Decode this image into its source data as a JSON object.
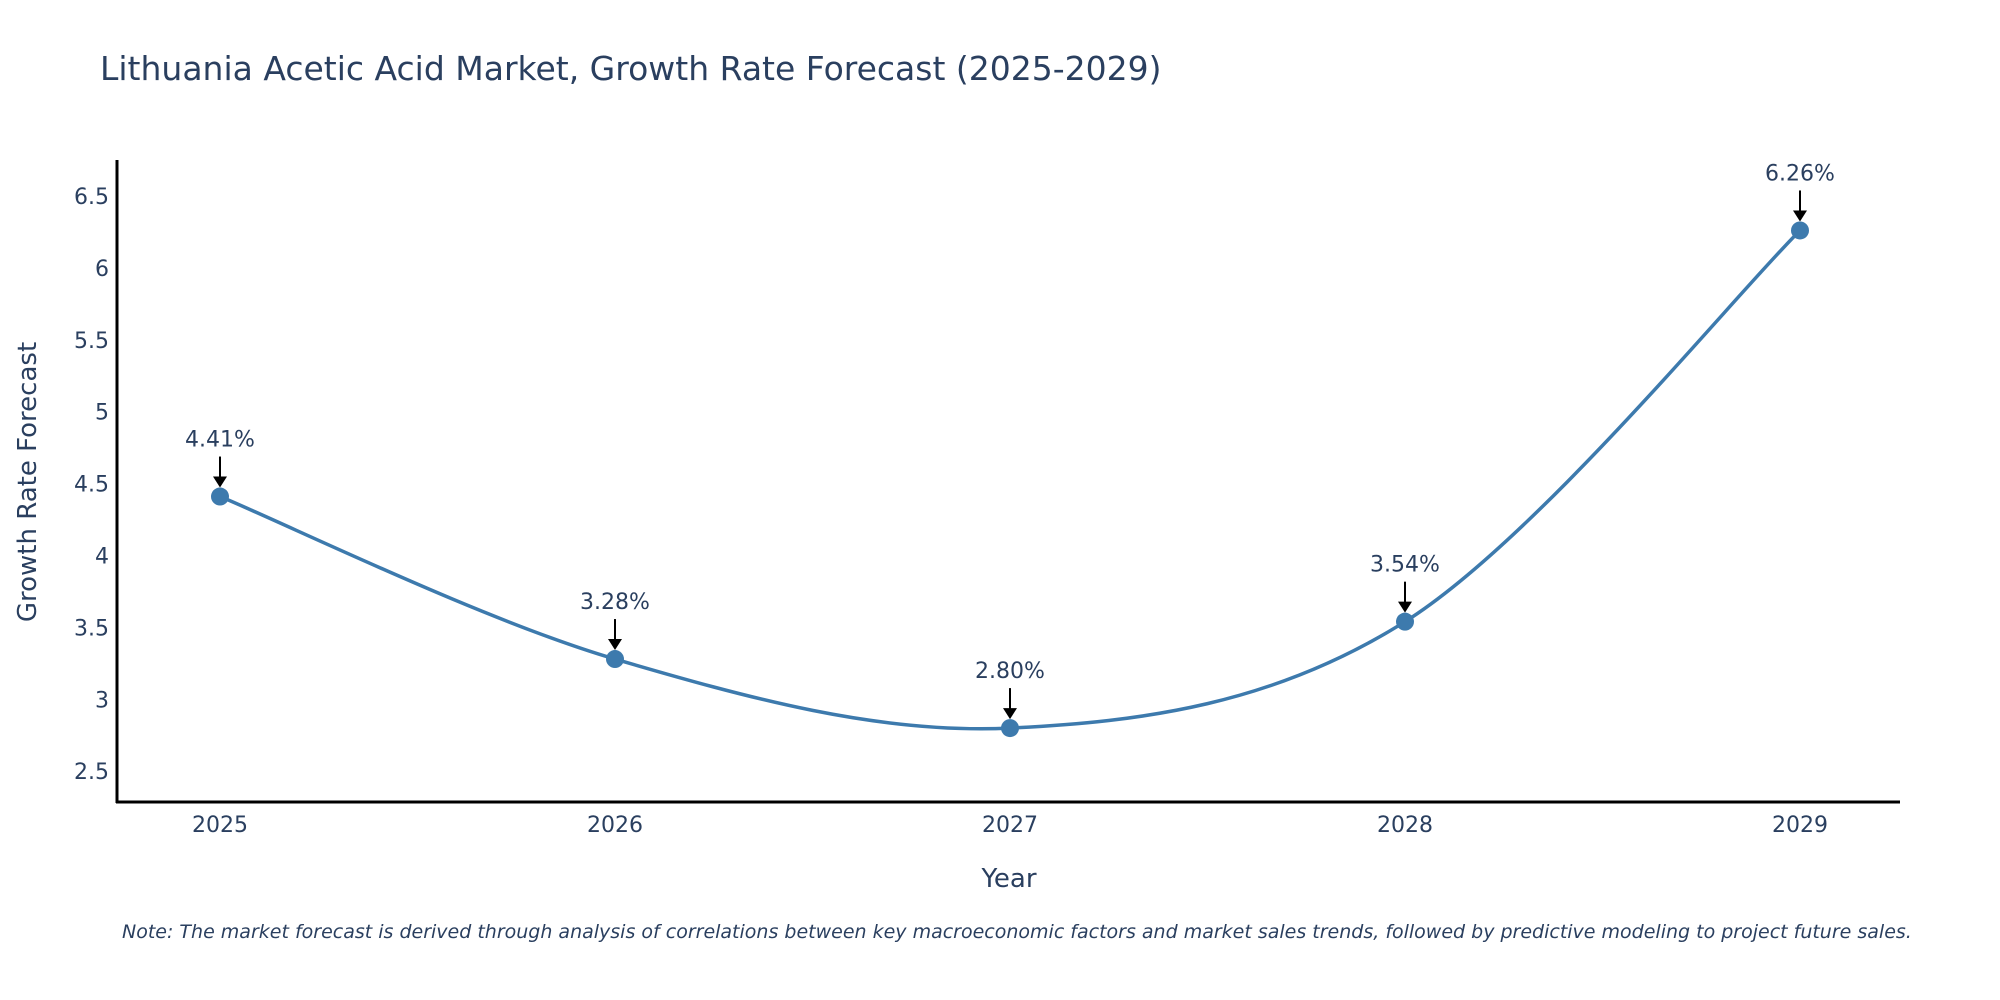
{
  "chart_data": {
    "type": "line",
    "title": "Lithuania Acetic Acid Market, Growth Rate Forecast (2025-2029)",
    "xlabel": "Year",
    "ylabel": "Growth Rate Forecast",
    "categories": [
      "2025",
      "2026",
      "2027",
      "2028",
      "2029"
    ],
    "series": [
      {
        "name": "Growth Rate Forecast",
        "values": [
          4.41,
          3.28,
          2.8,
          3.54,
          6.26
        ]
      }
    ],
    "data_labels": [
      "4.41%",
      "3.28%",
      "2.80%",
      "3.54%",
      "6.26%"
    ],
    "ylim": [
      2.3,
      6.75
    ],
    "yticks": [
      2.5,
      3,
      3.5,
      4,
      4.5,
      5,
      5.5,
      6,
      6.5
    ],
    "ytick_labels": [
      "2.5",
      "3",
      "3.5",
      "4",
      "4.5",
      "5",
      "5.5",
      "6",
      "6.5"
    ],
    "grid": false,
    "line_shape": "spline",
    "line_color": "#3d7aad",
    "marker_color": "#3d7aad",
    "note": "Note: The market forecast is derived through analysis of correlations between key macroeconomic factors and market sales trends, followed by predictive modeling to project future sales."
  }
}
